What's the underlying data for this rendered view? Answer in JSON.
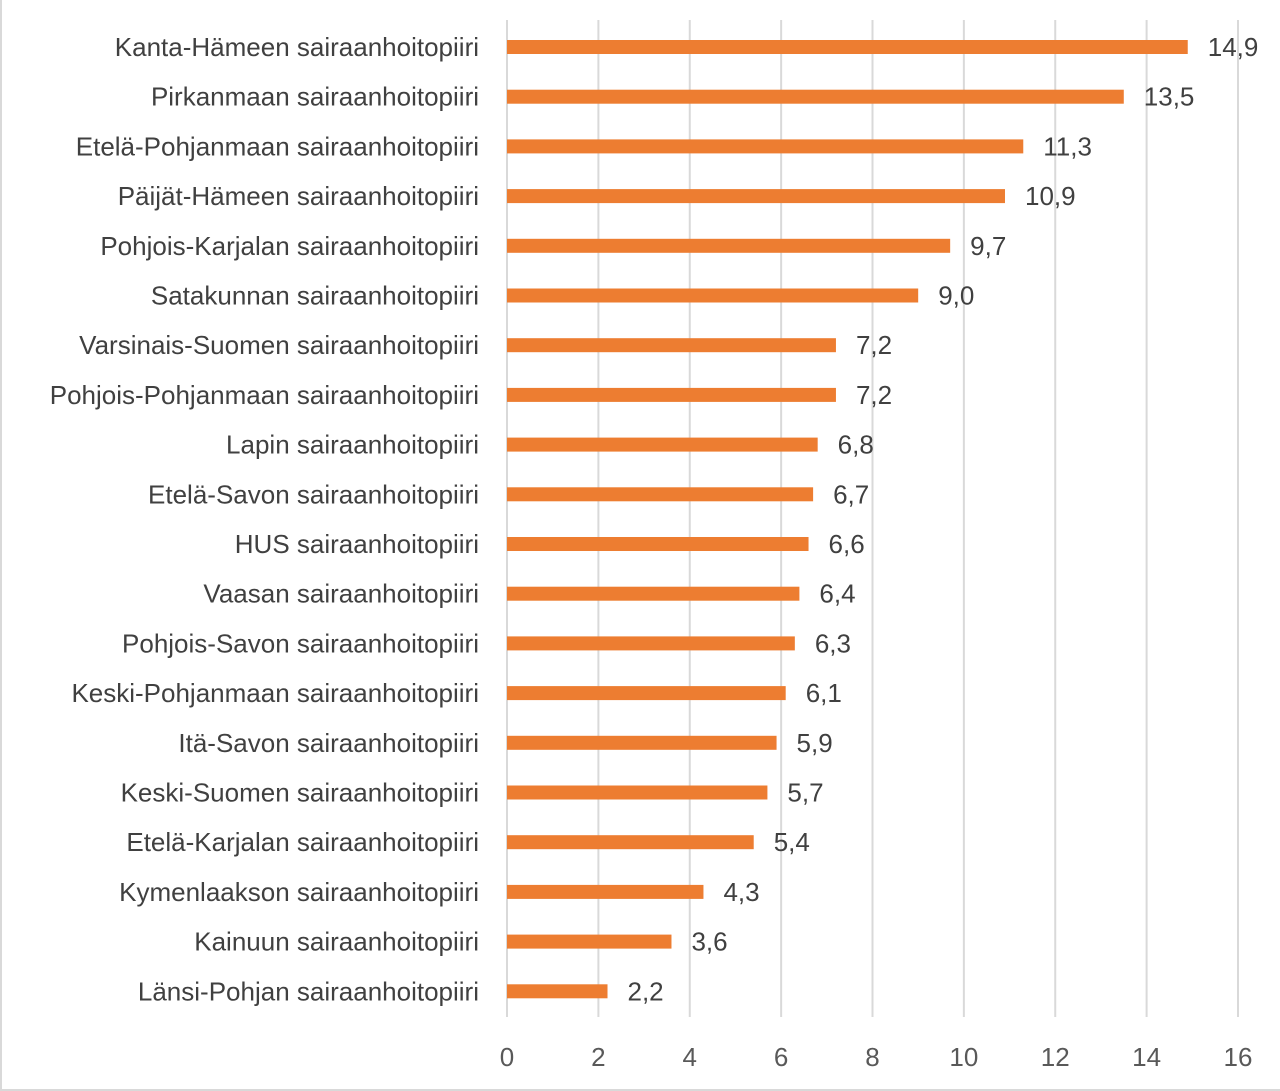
{
  "chart_data": {
    "type": "bar",
    "orientation": "horizontal",
    "title": "",
    "xlabel": "",
    "ylabel": "",
    "categories": [
      "Kanta-Hämeen sairaanhoitopiiri",
      "Pirkanmaan sairaanhoitopiiri",
      "Etelä-Pohjanmaan sairaanhoitopiiri",
      "Päijät-Hämeen sairaanhoitopiiri",
      "Pohjois-Karjalan sairaanhoitopiiri",
      "Satakunnan sairaanhoitopiiri",
      "Varsinais-Suomen sairaanhoitopiiri",
      "Pohjois-Pohjanmaan sairaanhoitopiiri",
      "Lapin sairaanhoitopiiri",
      "Etelä-Savon sairaanhoitopiiri",
      "HUS sairaanhoitopiiri",
      "Vaasan sairaanhoitopiiri",
      "Pohjois-Savon sairaanhoitopiiri",
      "Keski-Pohjanmaan sairaanhoitopiiri",
      "Itä-Savon sairaanhoitopiiri",
      "Keski-Suomen sairaanhoitopiiri",
      "Etelä-Karjalan sairaanhoitopiiri",
      "Kymenlaakson sairaanhoitopiiri",
      "Kainuun sairaanhoitopiiri",
      "Länsi-Pohjan sairaanhoitopiiri"
    ],
    "values": [
      14.9,
      13.5,
      11.3,
      10.9,
      9.7,
      9.0,
      7.2,
      7.2,
      6.8,
      6.7,
      6.6,
      6.4,
      6.3,
      6.1,
      5.9,
      5.7,
      5.4,
      4.3,
      3.6,
      2.2
    ],
    "value_labels": [
      "14,9",
      "13,5",
      "11,3",
      "10,9",
      "9,7",
      "9,0",
      "7,2",
      "7,2",
      "6,8",
      "6,7",
      "6,6",
      "6,4",
      "6,3",
      "6,1",
      "5,9",
      "5,7",
      "5,4",
      "4,3",
      "3,6",
      "2,2"
    ],
    "xlim": [
      0,
      16
    ],
    "x_ticks": [
      0,
      2,
      4,
      6,
      8,
      10,
      12,
      14,
      16
    ],
    "grid": "vertical",
    "legend": "none",
    "bar_color": "#ed7d31"
  }
}
